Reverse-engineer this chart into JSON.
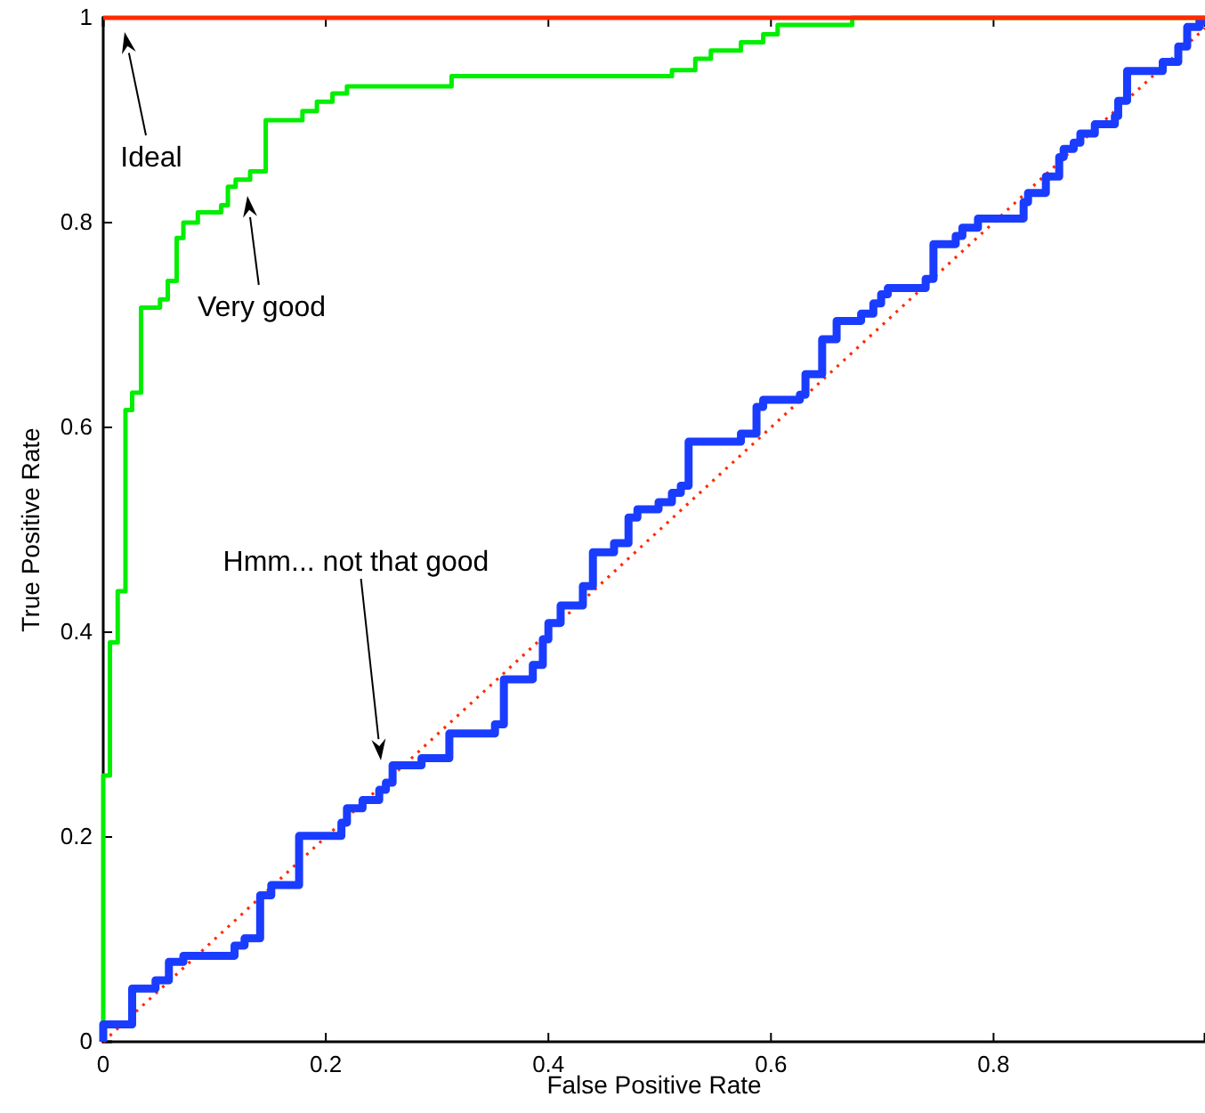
{
  "chart_data": {
    "type": "step",
    "xlabel": "False Positive Rate",
    "ylabel": "True Positive Rate",
    "xlim": [
      0,
      0.99
    ],
    "ylim": [
      0,
      1
    ],
    "xticks": [
      0,
      0.2,
      0.4,
      0.6,
      0.8
    ],
    "yticks": [
      0,
      0.2,
      0.4,
      0.6,
      0.8,
      1
    ],
    "grid": false,
    "series": [
      {
        "type": "line",
        "color": "#ff2a00",
        "line_style": "dotted",
        "x": [
          0,
          0.99
        ],
        "values": [
          0,
          0.99
        ]
      },
      {
        "type": "line",
        "color": "#ff2a00",
        "line_style": "solid",
        "x": [
          0,
          0.99
        ],
        "values": [
          1,
          1
        ]
      },
      {
        "color": "#00ee00",
        "line_style": "solid",
        "x": [
          0,
          0,
          0.006,
          0.013,
          0.02,
          0.026,
          0.034,
          0.051,
          0.058,
          0.066,
          0.072,
          0.085,
          0.106,
          0.112,
          0.119,
          0.132,
          0.146,
          0.179,
          0.192,
          0.206,
          0.219,
          0.313,
          0.511,
          0.532,
          0.546,
          0.573,
          0.593,
          0.606,
          0.673,
          0.99
        ],
        "values": [
          0,
          0.26,
          0.39,
          0.44,
          0.617,
          0.634,
          0.717,
          0.725,
          0.743,
          0.785,
          0.8,
          0.81,
          0.817,
          0.835,
          0.842,
          0.85,
          0.9,
          0.909,
          0.918,
          0.926,
          0.933,
          0.943,
          0.949,
          0.96,
          0.968,
          0.976,
          0.984,
          0.993,
          1,
          1
        ]
      },
      {
        "color": "#1a3cff",
        "line_style": "solid",
        "x": [
          0,
          0,
          0.026,
          0.047,
          0.059,
          0.072,
          0.118,
          0.127,
          0.141,
          0.151,
          0.176,
          0.214,
          0.219,
          0.233,
          0.248,
          0.254,
          0.26,
          0.286,
          0.311,
          0.352,
          0.36,
          0.386,
          0.395,
          0.4,
          0.411,
          0.431,
          0.44,
          0.459,
          0.472,
          0.48,
          0.499,
          0.511,
          0.519,
          0.526,
          0.573,
          0.587,
          0.593,
          0.626,
          0.631,
          0.646,
          0.659,
          0.681,
          0.692,
          0.699,
          0.705,
          0.739,
          0.746,
          0.766,
          0.772,
          0.786,
          0.827,
          0.831,
          0.847,
          0.859,
          0.863,
          0.872,
          0.878,
          0.891,
          0.909,
          0.912,
          0.92,
          0.952,
          0.966,
          0.974,
          0.985,
          0.99
        ],
        "values": [
          0,
          0.017,
          0.052,
          0.06,
          0.078,
          0.084,
          0.094,
          0.101,
          0.143,
          0.153,
          0.201,
          0.214,
          0.228,
          0.236,
          0.246,
          0.253,
          0.27,
          0.277,
          0.301,
          0.31,
          0.354,
          0.368,
          0.393,
          0.409,
          0.426,
          0.445,
          0.478,
          0.487,
          0.512,
          0.52,
          0.527,
          0.536,
          0.543,
          0.586,
          0.594,
          0.62,
          0.627,
          0.632,
          0.652,
          0.686,
          0.704,
          0.711,
          0.721,
          0.73,
          0.736,
          0.745,
          0.779,
          0.787,
          0.795,
          0.804,
          0.82,
          0.829,
          0.845,
          0.864,
          0.872,
          0.878,
          0.887,
          0.896,
          0.904,
          0.919,
          0.948,
          0.957,
          0.972,
          0.991,
          0.997,
          0.997
        ]
      }
    ],
    "annotations": [
      "Ideal",
      "Very good",
      "Hmm... not that good"
    ]
  }
}
